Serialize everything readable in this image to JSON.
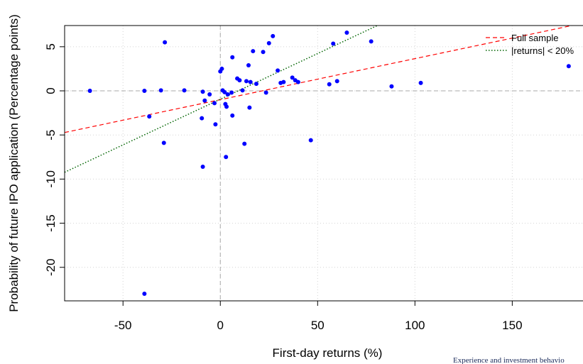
{
  "chart_data": {
    "type": "scatter",
    "title": "",
    "xlabel": "First-day returns (%)",
    "ylabel": "Probability of future IPO application (Percentage points)",
    "xlim": [
      -80,
      190
    ],
    "ylim": [
      -23.8,
      7.4
    ],
    "xticks": [
      -50,
      0,
      50,
      100,
      150
    ],
    "xtick_labels": [
      "-50",
      "0",
      "50",
      "100",
      "150"
    ],
    "yticks": [
      -20,
      -15,
      -10,
      -5,
      0,
      5
    ],
    "ytick_labels": [
      "-20",
      "-15",
      "-10",
      "-5",
      "0",
      "5"
    ],
    "grid": true,
    "legend_position": "top-right",
    "colors": {
      "points": "#0000ff",
      "full_sample": "#ff0000",
      "small_returns": "#006400",
      "grid": "#d3d3d3",
      "ref_line": "#aaaaaa"
    },
    "series": [
      {
        "kind": "points",
        "points": [
          [
            -67,
            0
          ],
          [
            -39,
            0
          ],
          [
            -39,
            -23
          ],
          [
            -36.5,
            -2.9
          ],
          [
            -30.5,
            0.05
          ],
          [
            -28.5,
            5.5
          ],
          [
            -29,
            -5.9
          ],
          [
            -18.5,
            0.05
          ],
          [
            -9.5,
            -3.1
          ],
          [
            -9,
            -8.6
          ],
          [
            -9,
            -0.1
          ],
          [
            -8,
            -1.1
          ],
          [
            -5.5,
            -0.4
          ],
          [
            -3,
            -1.4
          ],
          [
            -2.5,
            -3.8
          ],
          [
            0,
            2.2
          ],
          [
            0.8,
            2.5
          ],
          [
            1.2,
            0.05
          ],
          [
            2.2,
            -0.15
          ],
          [
            2.6,
            -1.5
          ],
          [
            3.2,
            -1.8
          ],
          [
            2.9,
            -7.5
          ],
          [
            3.8,
            -0.4
          ],
          [
            5.8,
            -0.2
          ],
          [
            6.2,
            3.8
          ],
          [
            6.2,
            -2.8
          ],
          [
            8.7,
            1.4
          ],
          [
            9.9,
            1.2
          ],
          [
            11.4,
            0.05
          ],
          [
            12.4,
            -6
          ],
          [
            13.4,
            1.1
          ],
          [
            14.5,
            2.9
          ],
          [
            15,
            -1.9
          ],
          [
            15.5,
            1.0
          ],
          [
            16.8,
            4.5
          ],
          [
            18.5,
            0.8
          ],
          [
            22,
            4.4
          ],
          [
            23.5,
            -0.2
          ],
          [
            25,
            5.4
          ],
          [
            27,
            6.2
          ],
          [
            29.5,
            2.3
          ],
          [
            31,
            0.9
          ],
          [
            32.5,
            1.0
          ],
          [
            37,
            1.5
          ],
          [
            38.5,
            1.2
          ],
          [
            40,
            1.0
          ],
          [
            46.5,
            -5.6
          ],
          [
            56,
            0.75
          ],
          [
            58,
            5.35
          ],
          [
            60,
            1.1
          ],
          [
            65,
            6.6
          ],
          [
            77.5,
            5.6
          ],
          [
            88,
            0.5
          ],
          [
            103,
            0.9
          ],
          [
            179,
            2.8
          ]
        ]
      },
      {
        "name": "Full sample",
        "kind": "fit-line",
        "dash": "dashed",
        "intercept": -1.0,
        "slope": 0.0465
      },
      {
        "name": "|returns| < 20%",
        "kind": "fit-line",
        "dash": "dotted",
        "intercept": -0.95,
        "slope": 0.1035
      }
    ],
    "footer": "Experience and investment behavio"
  }
}
